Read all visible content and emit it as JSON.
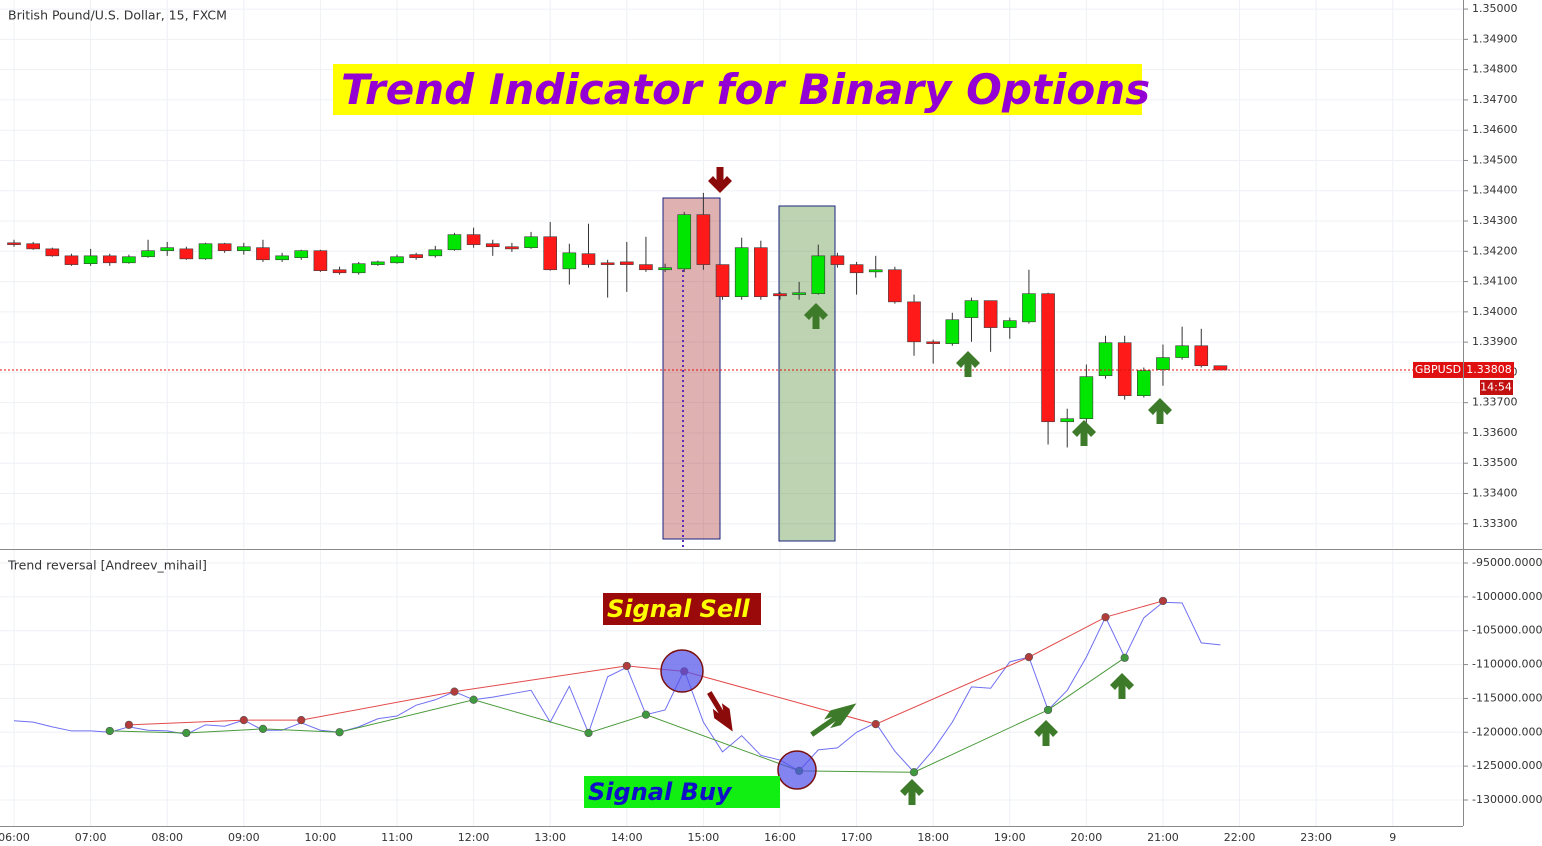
{
  "chart_data": [
    {
      "type": "candlestick",
      "title": "British Pound/U.S. Dollar, 15, FXCM",
      "annotations": [
        "Trend Indicator for Binary Options"
      ],
      "symbol": "GBPUSD",
      "last_price": 1.33808,
      "countdown": "14:54",
      "up_color": "#00e600",
      "down_color": "#ff1a1a",
      "wick_color": "#333333",
      "last_price_color": "#e01010",
      "grid": true,
      "xlim": [
        5.817,
        24.917
      ],
      "ylim": [
        1.3322,
        1.3503
      ],
      "yticks": [
        {
          "value": 1.35,
          "label": "1.35000"
        },
        {
          "value": 1.349,
          "label": "1.34900"
        },
        {
          "value": 1.348,
          "label": "1.34800"
        },
        {
          "value": 1.347,
          "label": "1.34700"
        },
        {
          "value": 1.346,
          "label": "1.34600"
        },
        {
          "value": 1.345,
          "label": "1.34500"
        },
        {
          "value": 1.344,
          "label": "1.34400"
        },
        {
          "value": 1.343,
          "label": "1.34300"
        },
        {
          "value": 1.342,
          "label": "1.34200"
        },
        {
          "value": 1.341,
          "label": "1.34100"
        },
        {
          "value": 1.34,
          "label": "1.34000"
        },
        {
          "value": 1.339,
          "label": "1.33900"
        },
        {
          "value": 1.338,
          "label": "1.33800"
        },
        {
          "value": 1.337,
          "label": "1.33700"
        },
        {
          "value": 1.336,
          "label": "1.33600"
        },
        {
          "value": 1.335,
          "label": "1.33500"
        },
        {
          "value": 1.334,
          "label": "1.33400"
        },
        {
          "value": 1.333,
          "label": "1.33300"
        }
      ],
      "x": [
        6,
        6.25,
        6.5,
        6.75,
        7,
        7.25,
        7.5,
        7.75,
        8,
        8.25,
        8.5,
        8.75,
        9,
        9.25,
        9.5,
        9.75,
        10,
        10.25,
        10.5,
        10.75,
        11,
        11.25,
        11.5,
        11.75,
        12,
        12.25,
        12.5,
        12.75,
        13,
        13.25,
        13.5,
        13.75,
        14,
        14.25,
        14.5,
        14.75,
        15,
        15.25,
        15.5,
        15.75,
        16,
        16.25,
        16.5,
        16.75,
        17,
        17.25,
        17.5,
        17.75,
        18,
        18.25,
        18.5,
        18.75,
        19,
        19.25,
        19.5,
        19.75,
        20,
        20.25,
        20.5,
        20.75,
        21,
        21.25,
        21.5,
        21.75
      ],
      "open": [
        1.34228,
        1.34225,
        1.34208,
        1.34185,
        1.34159,
        1.34185,
        1.34162,
        1.34182,
        1.34202,
        1.34208,
        1.34175,
        1.34225,
        1.34202,
        1.34212,
        1.34172,
        1.34179,
        1.34202,
        1.34139,
        1.34129,
        1.34156,
        1.34162,
        1.34189,
        1.34185,
        1.34205,
        1.34255,
        1.34225,
        1.34215,
        1.34212,
        1.34248,
        1.34142,
        1.34192,
        1.34162,
        1.34165,
        1.34156,
        1.34139,
        1.34142,
        1.34321,
        1.34156,
        1.3405,
        1.34212,
        1.3406,
        1.34057,
        1.3406,
        1.34185,
        1.34156,
        1.34132,
        1.34139,
        1.34033,
        1.33901,
        1.33895,
        1.33981,
        1.34037,
        1.33948,
        1.33967,
        1.3406,
        1.33637,
        1.33647,
        1.33789,
        1.33898,
        1.33723,
        1.33809,
        1.33849,
        1.33888,
        1.33822
      ],
      "high": [
        1.34238,
        1.34231,
        1.34212,
        1.34192,
        1.34208,
        1.34192,
        1.34189,
        1.34238,
        1.34231,
        1.34215,
        1.34228,
        1.34228,
        1.34228,
        1.34238,
        1.34195,
        1.34205,
        1.34205,
        1.34149,
        1.34165,
        1.34169,
        1.34189,
        1.34195,
        1.34218,
        1.34261,
        1.34278,
        1.34238,
        1.34228,
        1.34264,
        1.34297,
        1.34225,
        1.34291,
        1.34172,
        1.34231,
        1.34248,
        1.34159,
        1.3433,
        1.34393,
        1.34156,
        1.34245,
        1.34235,
        1.34066,
        1.34099,
        1.34222,
        1.34195,
        1.34165,
        1.34185,
        1.34149,
        1.34057,
        1.33908,
        1.33997,
        1.34047,
        1.34037,
        1.33981,
        1.34139,
        1.34063,
        1.3368,
        1.33826,
        1.33921,
        1.33921,
        1.33816,
        1.33892,
        1.33951,
        1.33944,
        1.33822
      ],
      "low": [
        1.34215,
        1.34205,
        1.34182,
        1.34152,
        1.34152,
        1.34152,
        1.34159,
        1.34179,
        1.34185,
        1.34172,
        1.34172,
        1.34195,
        1.34189,
        1.34165,
        1.34165,
        1.34172,
        1.34132,
        1.34123,
        1.34123,
        1.34152,
        1.34159,
        1.34172,
        1.34179,
        1.34202,
        1.34212,
        1.34185,
        1.34198,
        1.34208,
        1.34136,
        1.3409,
        1.34146,
        1.34047,
        1.34066,
        1.34132,
        1.34132,
        1.34132,
        1.34139,
        1.3404,
        1.3404,
        1.3404,
        1.3404,
        1.3404,
        1.34057,
        1.34146,
        1.34057,
        1.34113,
        1.34027,
        1.33855,
        1.33829,
        1.33888,
        1.33901,
        1.33868,
        1.33911,
        1.33961,
        1.33562,
        1.33552,
        1.33634,
        1.33779,
        1.3371,
        1.33717,
        1.33756,
        1.33842,
        1.33816,
        1.33808
      ],
      "close": [
        1.34222,
        1.34208,
        1.34185,
        1.34156,
        1.34185,
        1.34162,
        1.34182,
        1.34202,
        1.34212,
        1.34175,
        1.34225,
        1.34202,
        1.34215,
        1.34172,
        1.34185,
        1.34202,
        1.34136,
        1.34129,
        1.34159,
        1.34165,
        1.34182,
        1.34179,
        1.34205,
        1.34255,
        1.34222,
        1.34215,
        1.34208,
        1.34248,
        1.34139,
        1.34195,
        1.34156,
        1.34156,
        1.34156,
        1.34139,
        1.34146,
        1.34321,
        1.34156,
        1.3405,
        1.34212,
        1.3405,
        1.34053,
        1.34063,
        1.34185,
        1.34156,
        1.34129,
        1.34139,
        1.34033,
        1.33901,
        1.33895,
        1.33974,
        1.34037,
        1.33948,
        1.33971,
        1.3406,
        1.33637,
        1.33647,
        1.33786,
        1.33898,
        1.33723,
        1.33806,
        1.33849,
        1.33888,
        1.33822,
        1.33808
      ]
    },
    {
      "type": "line",
      "title": "Trend reversal [Andreev_mihail]",
      "annotations": [
        "Signal Sell",
        "Signal Buy"
      ],
      "grid": true,
      "xlim": [
        5.817,
        24.917
      ],
      "ylim": [
        -133840,
        -93080
      ],
      "xticks": [
        {
          "value": 6,
          "label": "06:00"
        },
        {
          "value": 7,
          "label": "07:00"
        },
        {
          "value": 8,
          "label": "08:00"
        },
        {
          "value": 9,
          "label": "09:00"
        },
        {
          "value": 10,
          "label": "10:00"
        },
        {
          "value": 11,
          "label": "11:00"
        },
        {
          "value": 12,
          "label": "12:00"
        },
        {
          "value": 13,
          "label": "13:00"
        },
        {
          "value": 14,
          "label": "14:00"
        },
        {
          "value": 15,
          "label": "15:00"
        },
        {
          "value": 16,
          "label": "16:00"
        },
        {
          "value": 17,
          "label": "17:00"
        },
        {
          "value": 18,
          "label": "18:00"
        },
        {
          "value": 19,
          "label": "19:00"
        },
        {
          "value": 20,
          "label": "20:00"
        },
        {
          "value": 21,
          "label": "21:00"
        },
        {
          "value": 22,
          "label": "22:00"
        },
        {
          "value": 23,
          "label": "23:00"
        },
        {
          "value": 24,
          "label": "9"
        }
      ],
      "yticks": [
        {
          "value": -95000,
          "label": "-95000.0000"
        },
        {
          "value": -100000,
          "label": "-100000.0000"
        },
        {
          "value": -105000,
          "label": "-105000.0000"
        },
        {
          "value": -110000,
          "label": "-110000.0000"
        },
        {
          "value": -115000,
          "label": "-115000.0000"
        },
        {
          "value": -120000,
          "label": "-120000.0000"
        },
        {
          "value": -125000,
          "label": "-125000.0000"
        },
        {
          "value": -130000,
          "label": "-130000.0000"
        }
      ],
      "series": [
        {
          "color": "#6f6ff2",
          "markers": false,
          "x": [
            6,
            6.25,
            6.5,
            6.75,
            7,
            7.25,
            7.5,
            7.75,
            8,
            8.25,
            8.5,
            8.75,
            9,
            9.25,
            9.5,
            9.75,
            10,
            10.25,
            10.5,
            10.75,
            11,
            11.25,
            11.5,
            11.75,
            12,
            12.25,
            12.5,
            12.75,
            13,
            13.25,
            13.5,
            13.75,
            14,
            14.25,
            14.5,
            14.75,
            15,
            15.25,
            15.5,
            15.75,
            16,
            16.25,
            16.5,
            16.75,
            17,
            17.25,
            17.5,
            17.75,
            18,
            18.25,
            18.5,
            18.75,
            19,
            19.25,
            19.5,
            19.75,
            20,
            20.25,
            20.5,
            20.75,
            21,
            21.25,
            21.5,
            21.75
          ],
          "values": [
            -118300,
            -118500,
            -119200,
            -119800,
            -119800,
            -120000,
            -119200,
            -119700,
            -119800,
            -120300,
            -118900,
            -119100,
            -118200,
            -119700,
            -119700,
            -118600,
            -119700,
            -120000,
            -119200,
            -118000,
            -117600,
            -116000,
            -115200,
            -114000,
            -115200,
            -114800,
            -114300,
            -113800,
            -118500,
            -113200,
            -120100,
            -111800,
            -110400,
            -117400,
            -116700,
            -110800,
            -118500,
            -122900,
            -120500,
            -123400,
            -124100,
            -125700,
            -122600,
            -122300,
            -120000,
            -118600,
            -122800,
            -125900,
            -122600,
            -118500,
            -113300,
            -113500,
            -109600,
            -108900,
            -116700,
            -113800,
            -108900,
            -103000,
            -108900,
            -103100,
            -100800,
            -100900,
            -106800,
            -107100
          ]
        },
        {
          "color": "#e34a4a",
          "markers": true,
          "marker_color": "#b23b3b",
          "x": [
            7.5,
            9,
            9.75,
            11.75,
            14,
            14.75,
            17.25,
            19.25,
            20.25,
            21
          ],
          "values": [
            -118900,
            -118200,
            -118200,
            -114000,
            -110200,
            -111000,
            -118800,
            -108900,
            -103000,
            -100600
          ]
        },
        {
          "color": "#4a9a3a",
          "markers": true,
          "marker_color": "#3f9a3f",
          "x": [
            7.25,
            8.25,
            9.25,
            10.25,
            12,
            13.5,
            14.25,
            16.25,
            17.75,
            19.5,
            20.5
          ],
          "values": [
            -119800,
            -120100,
            -119500,
            -120000,
            -115200,
            -120100,
            -117400,
            -125700,
            -125900,
            -116700,
            -109000
          ]
        }
      ]
    }
  ]
}
